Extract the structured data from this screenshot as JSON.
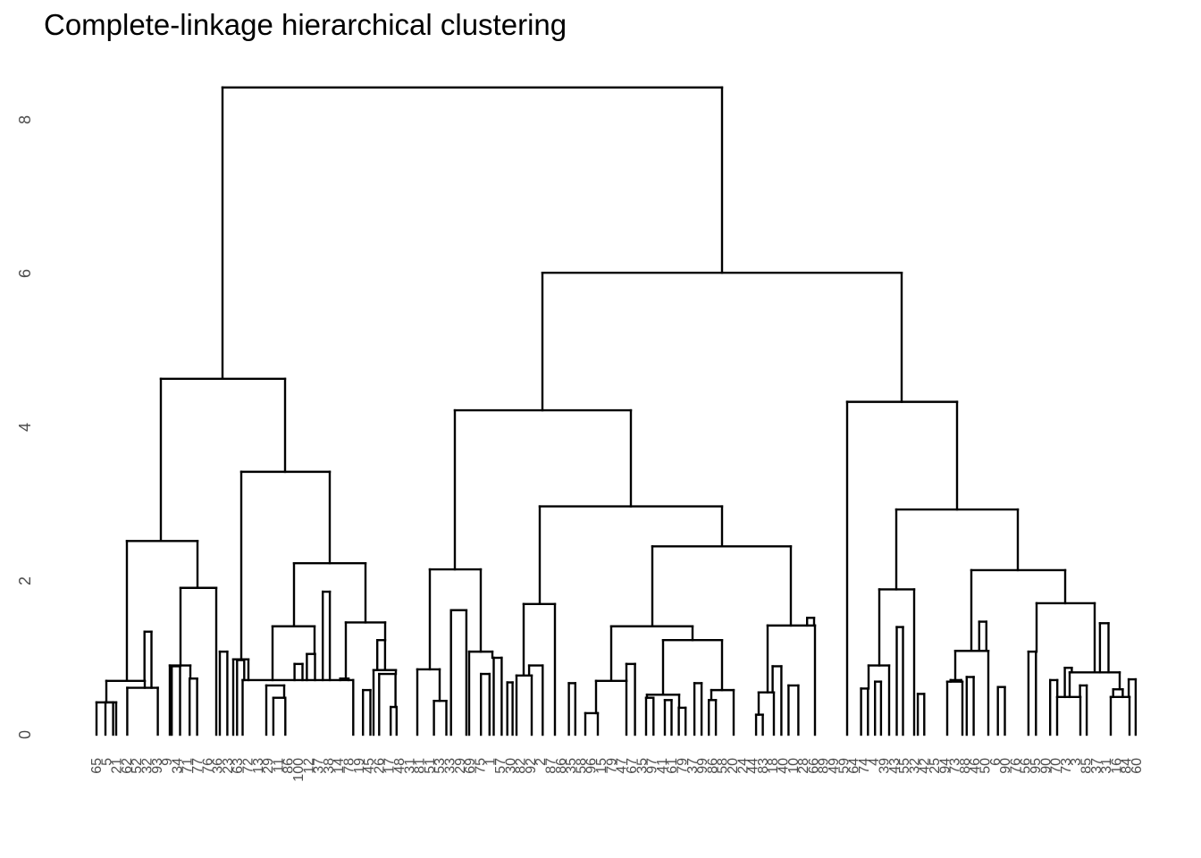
{
  "chart_data": {
    "type": "dendrogram",
    "title": "Complete-linkage hierarchical clustering",
    "xlabel": "",
    "ylabel": "",
    "ylim": [
      0,
      8.5
    ],
    "y_ticks": [
      "0",
      "2",
      "4",
      "6",
      "8"
    ],
    "grid": false,
    "leaf_labels": [
      "65",
      "5",
      "21",
      "62",
      "52",
      "32",
      "93",
      "9",
      "34",
      "71",
      "77",
      "76",
      "36",
      "23",
      "63",
      "72",
      "13",
      "29",
      "11",
      "86",
      "100",
      "12",
      "37",
      "38",
      "14",
      "78",
      "19",
      "45",
      "26",
      "17",
      "48",
      "31",
      "81",
      "51",
      "53",
      "33",
      "29",
      "69",
      "75",
      "1",
      "57",
      "30",
      "82",
      "92",
      "2",
      "87",
      "86",
      "35",
      "58",
      "96",
      "15",
      "79",
      "47",
      "67",
      "35",
      "97",
      "41",
      "61",
      "79",
      "37",
      "99",
      "86",
      "58",
      "20",
      "24",
      "44",
      "83",
      "18",
      "40",
      "10",
      "28",
      "66",
      "89",
      "49",
      "59",
      "64",
      "74",
      "4",
      "39",
      "43",
      "55",
      "32",
      "42",
      "25",
      "94",
      "73",
      "88",
      "46",
      "50",
      "6",
      "90",
      "76",
      "56",
      "95",
      "90",
      "70",
      "73",
      "3",
      "85",
      "37",
      "31",
      "16",
      "84",
      "60"
    ],
    "merges": [
      {
        "x1": 118.0,
        "x2": 126.6,
        "y": 0.42
      },
      {
        "x1": 142.4,
        "x2": 176.6,
        "y": 0.61
      },
      {
        "x1": 192.2,
        "x2": 201.5,
        "y": 0.89
      },
      {
        "x1": 212.2,
        "x2": 220.6,
        "y": 0.73
      },
      {
        "x1": 161.7,
        "x2": 169.5,
        "y": 1.34
      },
      {
        "x1": 265.3,
        "x2": 273.3,
        "y": 0.97
      },
      {
        "x1": 305.9,
        "x2": 319.3,
        "y": 0.48
      },
      {
        "x1": 329.6,
        "x2": 338.5,
        "y": 0.92
      },
      {
        "x1": 246.0,
        "x2": 254.4,
        "y": 1.08
      },
      {
        "x1": 343.4,
        "x2": 352.5,
        "y": 1.05
      },
      {
        "x1": 361.2,
        "x2": 369.1,
        "y": 1.86
      },
      {
        "x1": 380.7,
        "x2": 390.0,
        "y": 0.73
      },
      {
        "x1": 406.2,
        "x2": 414.5,
        "y": 0.58
      },
      {
        "x1": 422.2,
        "x2": 430.9,
        "y": 1.23
      },
      {
        "x1": 271.5,
        "x2": 395.3,
        "y": 0.71
      },
      {
        "x1": 424.3,
        "x2": 442.6,
        "y": 0.79
      },
      {
        "x1": 437.2,
        "x2": 443.8,
        "y": 0.36
      },
      {
        "x1": 485.6,
        "x2": 499.5,
        "y": 0.44
      },
      {
        "x1": 504.7,
        "x2": 521.9,
        "y": 1.62
      },
      {
        "x1": 538.2,
        "x2": 547.8,
        "y": 0.79
      },
      {
        "x1": 552.5,
        "x2": 561.4,
        "y": 1.0
      },
      {
        "x1": 567.7,
        "x2": 573.6,
        "y": 0.68
      },
      {
        "x1": 592.1,
        "x2": 607.3,
        "y": 0.9
      },
      {
        "x1": 636.6,
        "x2": 643.8,
        "y": 0.67
      },
      {
        "x1": 701.0,
        "x2": 710.6,
        "y": 0.92
      },
      {
        "x1": 723.0,
        "x2": 731.3,
        "y": 0.48
      },
      {
        "x1": 744.0,
        "x2": 751.5,
        "y": 0.45
      },
      {
        "x1": 759.6,
        "x2": 767.2,
        "y": 0.35
      },
      {
        "x1": 777.1,
        "x2": 785.1,
        "y": 0.67
      },
      {
        "x1": 793.2,
        "x2": 801.1,
        "y": 0.45
      },
      {
        "x1": 846.1,
        "x2": 853.6,
        "y": 0.26
      },
      {
        "x1": 864.6,
        "x2": 874.4,
        "y": 0.89
      },
      {
        "x1": 882.4,
        "x2": 893.4,
        "y": 0.64
      },
      {
        "x1": 903.2,
        "x2": 911.0,
        "y": 1.52
      },
      {
        "x1": 963.6,
        "x2": 971.3,
        "y": 0.6
      },
      {
        "x1": 979.2,
        "x2": 985.9,
        "y": 0.69
      },
      {
        "x1": 1003.5,
        "x2": 1010.5,
        "y": 1.4
      },
      {
        "x1": 1027.1,
        "x2": 1034.3,
        "y": 0.53
      },
      {
        "x1": 1063.8,
        "x2": 1075.6,
        "y": 0.71
      },
      {
        "x1": 1081.8,
        "x2": 1089.6,
        "y": 0.75
      },
      {
        "x1": 1095.8,
        "x2": 1103.8,
        "y": 1.47
      },
      {
        "x1": 1116.7,
        "x2": 1124.5,
        "y": 0.62
      },
      {
        "x1": 1150.9,
        "x2": 1159.3,
        "y": 1.08
      },
      {
        "x1": 1175.2,
        "x2": 1183.2,
        "y": 0.71
      },
      {
        "x1": 1191.6,
        "x2": 1199.4,
        "y": 0.87
      },
      {
        "x1": 1208.6,
        "x2": 1216.1,
        "y": 0.64
      },
      {
        "x1": 1230.9,
        "x2": 1240.5,
        "y": 1.45
      },
      {
        "x1": 1245.7,
        "x2": 1256.4,
        "y": 0.59
      },
      {
        "x1": 1263.1,
        "x2": 1270.9,
        "y": 0.72
      }
    ],
    "tree": [
      {
        "x1": 108.0,
        "x2": 130.0,
        "y": 0.42
      },
      {
        "x1": 119.0,
        "x2": 162.0,
        "y": 0.7
      },
      {
        "x1": 142.0,
        "x2": 221.0,
        "y": 2.52
      },
      {
        "x1": 190.0,
        "x2": 213.0,
        "y": 0.9
      },
      {
        "x1": 202.0,
        "x2": 242.0,
        "y": 1.91
      },
      {
        "x1": 180.0,
        "x2": 319.0,
        "y": 4.63
      },
      {
        "x1": 261.0,
        "x2": 278.0,
        "y": 0.98
      },
      {
        "x1": 298.0,
        "x2": 318.0,
        "y": 0.64
      },
      {
        "x1": 305.0,
        "x2": 352.0,
        "y": 1.41
      },
      {
        "x1": 329.0,
        "x2": 409.0,
        "y": 2.23
      },
      {
        "x1": 270.0,
        "x2": 369.0,
        "y": 3.42
      },
      {
        "x1": 387.0,
        "x2": 431.0,
        "y": 1.46
      },
      {
        "x1": 418.0,
        "x2": 443.0,
        "y": 0.84
      },
      {
        "x1": 249.0,
        "x2": 808.0,
        "y": 8.42
      },
      {
        "x1": 467.0,
        "x2": 492.0,
        "y": 0.85
      },
      {
        "x1": 481.0,
        "x2": 538.0,
        "y": 2.15
      },
      {
        "x1": 525.0,
        "x2": 551.0,
        "y": 1.08
      },
      {
        "x1": 509.0,
        "x2": 706.0,
        "y": 4.22
      },
      {
        "x1": 578.0,
        "x2": 595.0,
        "y": 0.77
      },
      {
        "x1": 586.0,
        "x2": 621.0,
        "y": 1.7
      },
      {
        "x1": 604.0,
        "x2": 808.0,
        "y": 2.97
      },
      {
        "x1": 655.0,
        "x2": 669.0,
        "y": 0.28
      },
      {
        "x1": 667.0,
        "x2": 701.0,
        "y": 0.7
      },
      {
        "x1": 684.0,
        "x2": 775.0,
        "y": 1.41
      },
      {
        "x1": 730.0,
        "x2": 885.0,
        "y": 2.45
      },
      {
        "x1": 724.0,
        "x2": 760.0,
        "y": 0.52
      },
      {
        "x1": 742.0,
        "x2": 808.0,
        "y": 1.23
      },
      {
        "x1": 796.0,
        "x2": 821.0,
        "y": 0.58
      },
      {
        "x1": 849.0,
        "x2": 866.0,
        "y": 0.55
      },
      {
        "x1": 859.0,
        "x2": 912.0,
        "y": 1.42
      },
      {
        "x1": 607.0,
        "x2": 1009.0,
        "y": 6.01
      },
      {
        "x1": 948.0,
        "x2": 1071.0,
        "y": 4.33
      },
      {
        "x1": 972.0,
        "x2": 995.0,
        "y": 0.9
      },
      {
        "x1": 984.0,
        "x2": 1023.0,
        "y": 1.89
      },
      {
        "x1": 1003.0,
        "x2": 1139.0,
        "y": 2.93
      },
      {
        "x1": 1060.0,
        "x2": 1077.0,
        "y": 0.69
      },
      {
        "x1": 1069.0,
        "x2": 1106.0,
        "y": 1.09
      },
      {
        "x1": 1087.0,
        "x2": 1192.0,
        "y": 2.14
      },
      {
        "x1": 1160.0,
        "x2": 1225.0,
        "y": 1.71
      },
      {
        "x1": 1183.0,
        "x2": 1209.0,
        "y": 0.49
      },
      {
        "x1": 1197.0,
        "x2": 1253.0,
        "y": 0.81
      },
      {
        "x1": 1243.0,
        "x2": 1264.0,
        "y": 0.49
      }
    ]
  }
}
